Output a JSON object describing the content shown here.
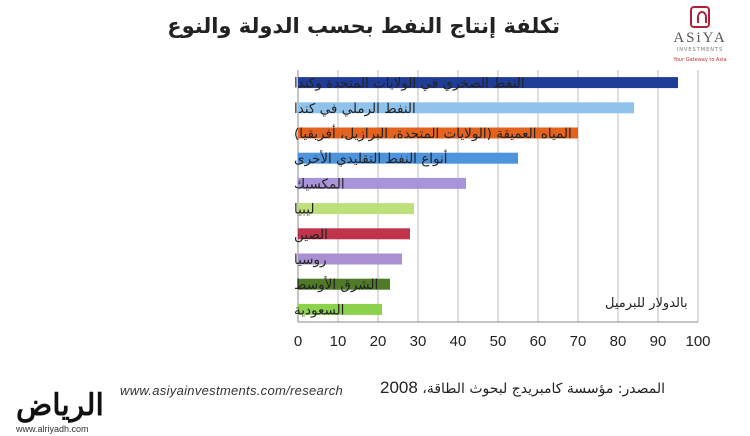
{
  "chart_data": {
    "type": "bar",
    "orientation": "horizontal",
    "title": "تكلفة إنتاج النفط بحسب الدولة والنوع",
    "categories": [
      "النفط الصخري في الولايات المتحدة وكندا",
      "النفط الرملي في كندا",
      "المياه العميقة (الولايات المتحدة، البرازيل، أفريقيا)",
      "أنواع النفط التقليدي الأخرى",
      "المكسيك",
      "ليبيا",
      "الصين",
      "روسيا",
      "الشرق الأوسط",
      "السعودية"
    ],
    "values": [
      95,
      84,
      70,
      55,
      42,
      29,
      28,
      26,
      23,
      21
    ],
    "colors": [
      "#1f3c96",
      "#8fc3ec",
      "#e3621e",
      "#4d94dc",
      "#a894d8",
      "#bde07a",
      "#c0334b",
      "#a890d2",
      "#4f7a28",
      "#8cd24c"
    ],
    "ticks": [
      "0",
      "10",
      "20",
      "30",
      "40",
      "50",
      "60",
      "70",
      "80",
      "90",
      "100"
    ],
    "xlim": [
      0,
      100
    ],
    "unit_label": "بالدولار للبرميل",
    "grid": true
  },
  "source": {
    "text": "المصدر: مؤسسة كامبريدج لبحوث الطاقة،",
    "year": "2008"
  },
  "url": "www.asiyainvestments.com/research",
  "logo": {
    "name": "ASiYA",
    "sub": "INVESTMENTS",
    "tagline": "Your Gateway to Asia"
  },
  "watermark": {
    "name": "الرياض",
    "site": "www.alriyadh.com"
  }
}
